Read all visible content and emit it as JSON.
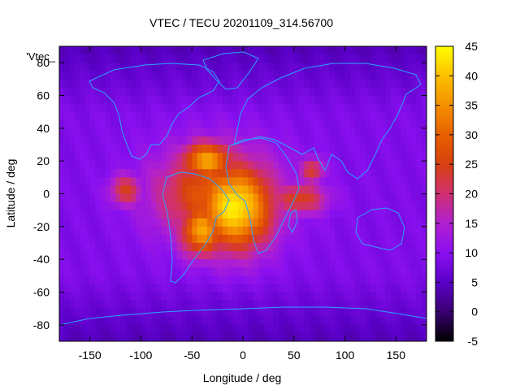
{
  "chart_data": {
    "type": "heatmap",
    "title": "VTEC / TECU 20201109_314.56700",
    "xlabel": "Longitude / deg",
    "ylabel": "Latitude / deg",
    "series_label": "'Vtec_",
    "xlim": [
      -180,
      180
    ],
    "ylim": [
      -90,
      90
    ],
    "xticks": [
      -150,
      -100,
      -50,
      0,
      50,
      100,
      150
    ],
    "yticks": [
      -80,
      -60,
      -40,
      -20,
      0,
      20,
      40,
      60,
      80
    ],
    "colorbar": {
      "range": [
        -5,
        45
      ],
      "ticks": [
        -5,
        0,
        5,
        10,
        15,
        20,
        25,
        30,
        35,
        40,
        45
      ],
      "palette": [
        "#000000",
        "#3a0070",
        "#5a00c8",
        "#8a10f0",
        "#b020d0",
        "#d03070",
        "#d84010",
        "#e86000",
        "#f49000",
        "#fcc000",
        "#ffff00"
      ]
    },
    "grid": {
      "lon_step": 5,
      "lat_step": 5
    },
    "peaks": [
      {
        "lon": -8,
        "lat": -8,
        "value": 44
      },
      {
        "lon": -35,
        "lat": 20,
        "value": 37
      },
      {
        "lon": -40,
        "lat": -22,
        "value": 37
      },
      {
        "lon": -115,
        "lat": 2,
        "value": 24
      },
      {
        "lon": 55,
        "lat": -3,
        "value": 25
      },
      {
        "lon": 68,
        "lat": 14,
        "value": 24
      }
    ],
    "background_value": 9,
    "polar_value": 4
  }
}
